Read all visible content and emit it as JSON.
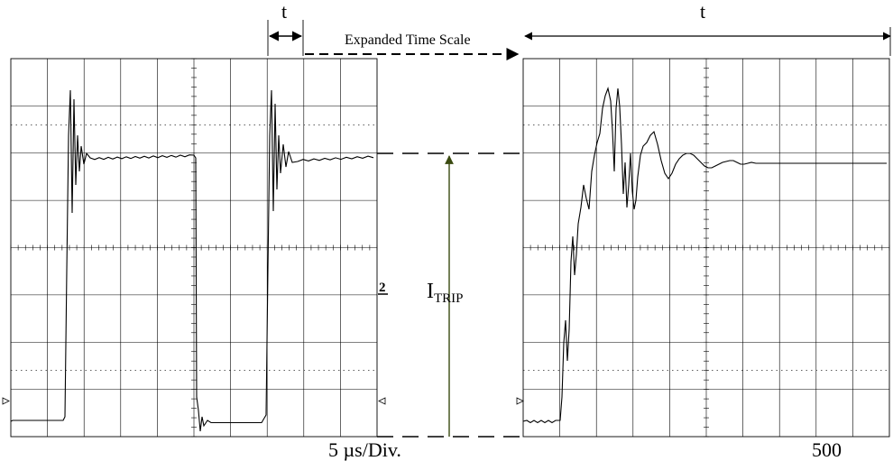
{
  "labels": {
    "t_left": "t",
    "t_right": "t",
    "expanded": "Expanded Time Scale",
    "itrip_main": "I",
    "itrip_sub": "TRIP",
    "channel_marker": "2",
    "timebase": "5 µs/Div.",
    "page_number": "500"
  },
  "colors": {
    "trace": "#000000",
    "grid": "#000000",
    "itrip_arrow": "#3a4a10"
  }
}
